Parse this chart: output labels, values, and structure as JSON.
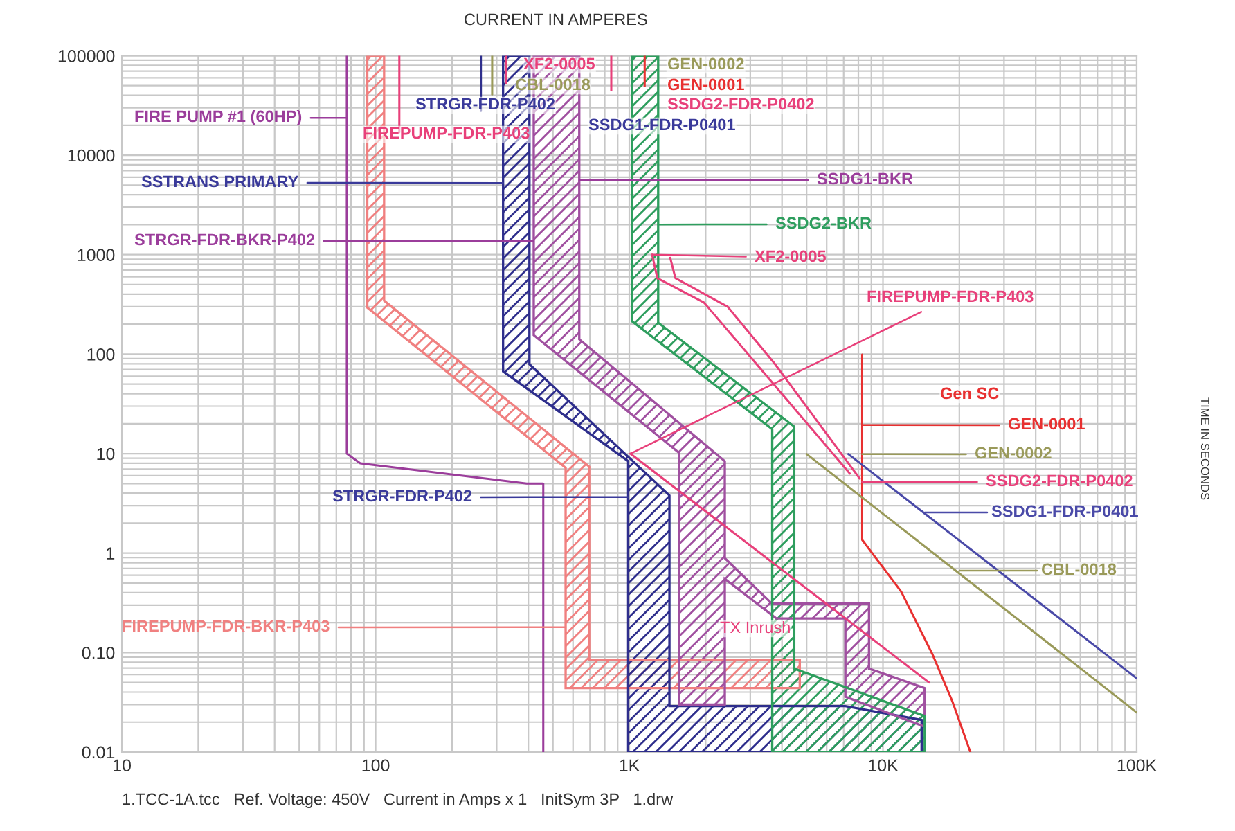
{
  "chart_data": {
    "type": "line",
    "title": "CURRENT IN AMPERES",
    "ylabel": "TIME IN SECONDS",
    "log": "xy",
    "grid": true,
    "xlim": [
      10,
      100000
    ],
    "ylim": [
      0.01,
      100000
    ],
    "xticks": [
      10,
      100,
      {
        "value": 1000,
        "label": "1K"
      },
      {
        "value": 10000,
        "label": "10K"
      },
      {
        "value": 100000,
        "label": "100K"
      }
    ],
    "yticks": [
      0.01,
      {
        "value": 0.1,
        "label": "0.10"
      },
      1,
      10,
      100,
      1000,
      10000,
      100000
    ],
    "series": [
      {
        "type": "area",
        "color": "#f08080",
        "x": [
          92.7,
          92.7,
          561,
          561,
          4700,
          4700,
          695,
          695,
          108,
          108
        ],
        "values": [
          100000,
          294,
          7.2,
          0.044,
          0.044,
          0.084,
          0.084,
          7.4,
          345,
          100000
        ]
      },
      {
        "type": "area",
        "color": "#2e2e8c",
        "x": [
          318,
          318,
          990,
          990,
          14200,
          14200,
          7100,
          1440,
          1440,
          404,
          404
        ],
        "values": [
          100000,
          67,
          8.4,
          0.01,
          0.01,
          0.021,
          0.029,
          0.029,
          3.8,
          79,
          100000
        ]
      },
      {
        "type": "area",
        "color": "#a050a0",
        "x": [
          420,
          420,
          1570,
          1570,
          2380,
          2380,
          3800,
          7110,
          7110,
          14600,
          14600,
          8810,
          8810,
          3650,
          2380,
          2380,
          635,
          635
        ],
        "values": [
          100000,
          155,
          10.2,
          0.03,
          0.03,
          0.55,
          0.22,
          0.22,
          0.036,
          0.018,
          0.044,
          0.069,
          0.31,
          0.31,
          0.89,
          8.4,
          141,
          100000
        ]
      },
      {
        "type": "area",
        "color": "#2e9e5e",
        "x": [
          1025,
          1025,
          3660,
          3660,
          14600,
          14600,
          4470,
          4470,
          1300,
          1300
        ],
        "values": [
          100000,
          214,
          17.6,
          0.01,
          0.01,
          0.023,
          0.069,
          18.7,
          207,
          100000
        ]
      },
      {
        "color": "#9b3d9b",
        "x": [
          77,
          77,
          87,
          394,
          458,
          458
        ],
        "values": [
          100000,
          10,
          8,
          5,
          5,
          0.01
        ]
      },
      {
        "color": "#e8407a",
        "x": [
          1230,
          1290,
          1970,
          2960,
          7400
        ],
        "values": [
          1000,
          580,
          330,
          98,
          6.3
        ]
      },
      {
        "color": "#e8407a",
        "x": [
          1450,
          1520,
          2440,
          3730,
          8100
        ],
        "values": [
          930,
          580,
          300,
          81,
          5.6
        ]
      },
      {
        "color": "#e8407a",
        "x": [
          1010,
          15200
        ],
        "values": [
          10,
          0.05
        ]
      },
      {
        "color": "#e83030",
        "x": [
          8280,
          8280,
          11800,
          15700,
          18800,
          22100
        ],
        "values": [
          99,
          1.36,
          0.41,
          0.095,
          0.032,
          0.01
        ]
      },
      {
        "color": "#9a9a5a",
        "x": [
          5000,
          19300,
          100000
        ],
        "values": [
          9.9,
          0.67,
          0.025
        ]
      },
      {
        "color": "#4a4aa8",
        "x": [
          7300,
          14400,
          100000
        ],
        "values": [
          9.9,
          2.57,
          0.055
        ]
      },
      {
        "color": "#e8407a",
        "x": [
          124,
          124
        ],
        "values": [
          100000,
          17000
        ]
      },
      {
        "color": "#2e2e8c",
        "x": [
          260,
          260
        ],
        "values": [
          100000,
          27800
        ]
      },
      {
        "color": "#9a9a5a",
        "x": [
          288,
          288
        ],
        "values": [
          100000,
          40800
        ]
      },
      {
        "color": "#e8407a",
        "x": [
          327,
          327
        ],
        "values": [
          100000,
          52700
        ]
      },
      {
        "color": "#e8407a",
        "x": [
          849,
          849
        ],
        "values": [
          100000,
          45000
        ]
      },
      {
        "color": "#e83030",
        "x": [
          1150,
          1150
        ],
        "values": [
          100000,
          49400
        ]
      }
    ],
    "annotations": [
      {
        "text": "FIRE PUMP #1 (60HP)",
        "x": 77,
        "y": 23700
      },
      {
        "text": "SSTRANS PRIMARY",
        "x": 318,
        "y": 5250
      },
      {
        "text": "STRGR-FDR-BKR-P402",
        "x": 420,
        "y": 1370
      },
      {
        "text": "FIREPUMP-FDR-BKR-P403",
        "x": 561,
        "y": 0.18
      },
      {
        "text": "STRGR-FDR-P402",
        "x": 990,
        "y": 3.66
      },
      "XF2-0005",
      "CBL-0018",
      "GEN-0002",
      "GEN-0001",
      "STRGR-FDR-P402",
      "SSDG2-FDR-P0402",
      "FIREPUMP-FDR-P403",
      "SSDG1-FDR-P0401",
      {
        "text": "SSDG1-BKR",
        "x": 635,
        "y": 5600
      },
      {
        "text": "SSDG2-BKR",
        "x": 1300,
        "y": 2010
      },
      {
        "text": "XF2-0005",
        "x": 1230,
        "y": 1000
      },
      {
        "text": "FIREPUMP-FDR-P403",
        "x": 1010,
        "y": 10
      },
      "Gen SC",
      {
        "text": "GEN-0001",
        "x": 8280,
        "y": 19.4
      },
      {
        "text": "GEN-0002",
        "x": 8280,
        "y": 9.9
      },
      {
        "text": "SSDG2-FDR-P0402",
        "x": 8280,
        "y": 5.2
      },
      "SSDG1-FDR-P0401",
      "CBL-0018",
      "TX Inrush",
      "1.TCC-1A.tcc   Ref. Voltage: 450V   Current in Amps x 1   InitSym 3P   1.drw"
    ]
  }
}
